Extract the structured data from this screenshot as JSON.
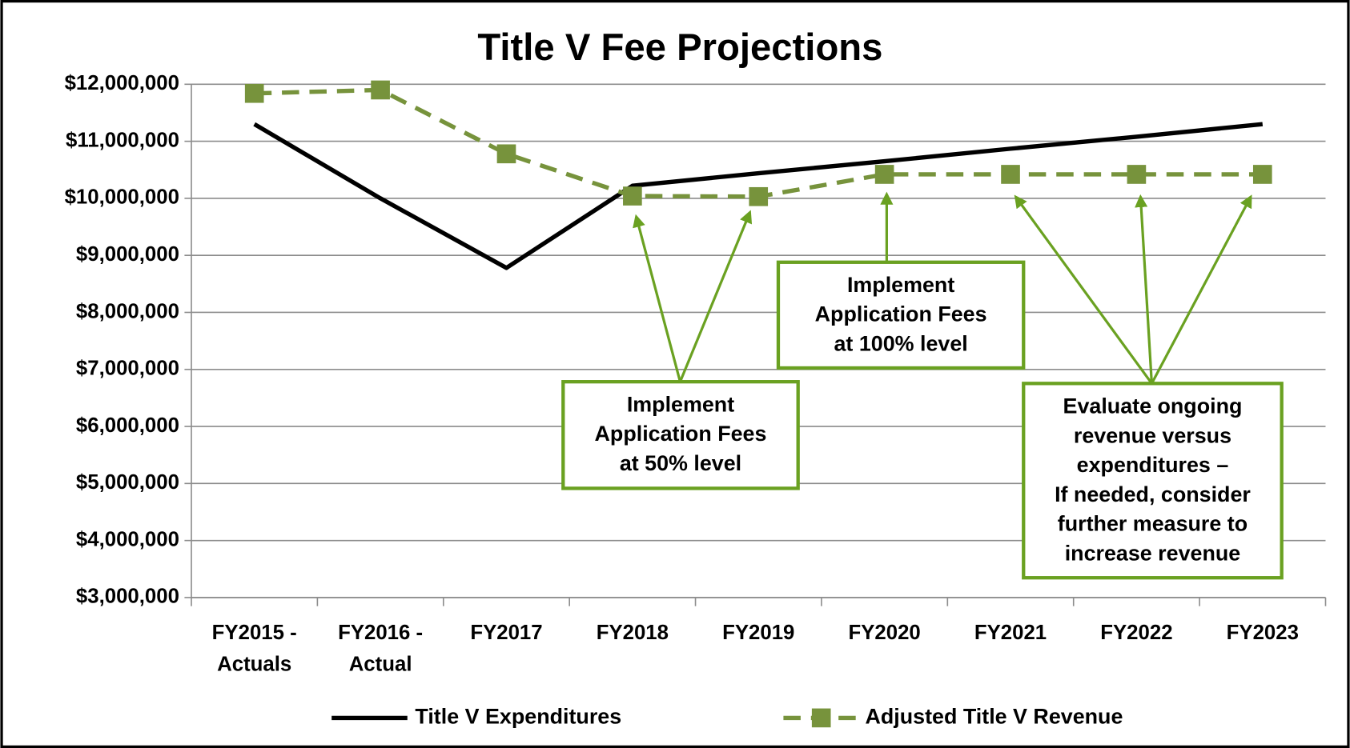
{
  "chart_data": {
    "type": "line",
    "title": "Title V Fee Projections",
    "categories": [
      [
        "FY2015 -",
        "Actuals"
      ],
      [
        "FY2016 -",
        "Actual"
      ],
      [
        "FY2017"
      ],
      [
        "FY2018"
      ],
      [
        "FY2019"
      ],
      [
        "FY2020"
      ],
      [
        "FY2021"
      ],
      [
        "FY2022"
      ],
      [
        "FY2023"
      ]
    ],
    "series": [
      {
        "name": "Title V Expenditures",
        "color": "#000000",
        "values": [
          11300000,
          10000000,
          8780000,
          10220000,
          10440000,
          10650000,
          10870000,
          11080000,
          11300000
        ]
      },
      {
        "name": "Adjusted Title V Revenue",
        "color": "#77933c",
        "values": [
          11840000,
          11900000,
          10780000,
          10040000,
          10030000,
          10420000,
          10420000,
          10420000,
          10420000
        ]
      }
    ],
    "ylim": [
      3000000,
      12000000
    ],
    "yticks": [
      {
        "value": 3000000,
        "label": "$3,000,000"
      },
      {
        "value": 4000000,
        "label": "$4,000,000"
      },
      {
        "value": 5000000,
        "label": "$5,000,000"
      },
      {
        "value": 6000000,
        "label": "$6,000,000"
      },
      {
        "value": 7000000,
        "label": "$7,000,000"
      },
      {
        "value": 8000000,
        "label": "$8,000,000"
      },
      {
        "value": 9000000,
        "label": "$9,000,000"
      },
      {
        "value": 10000000,
        "label": "$10,000,000"
      },
      {
        "value": 11000000,
        "label": "$11,000,000"
      },
      {
        "value": 12000000,
        "label": "$12,000,000"
      }
    ],
    "grid": true,
    "legend": "bottom",
    "annotations": [
      {
        "lines": [
          "Implement",
          "Application Fees",
          "at 50% level"
        ]
      },
      {
        "lines": [
          "Implement",
          "Application Fees",
          "at 100% level"
        ]
      },
      {
        "lines": [
          "Evaluate ongoing",
          "revenue versus",
          "expenditures –",
          "If needed, consider",
          "further measure to",
          "increase revenue"
        ]
      }
    ]
  }
}
